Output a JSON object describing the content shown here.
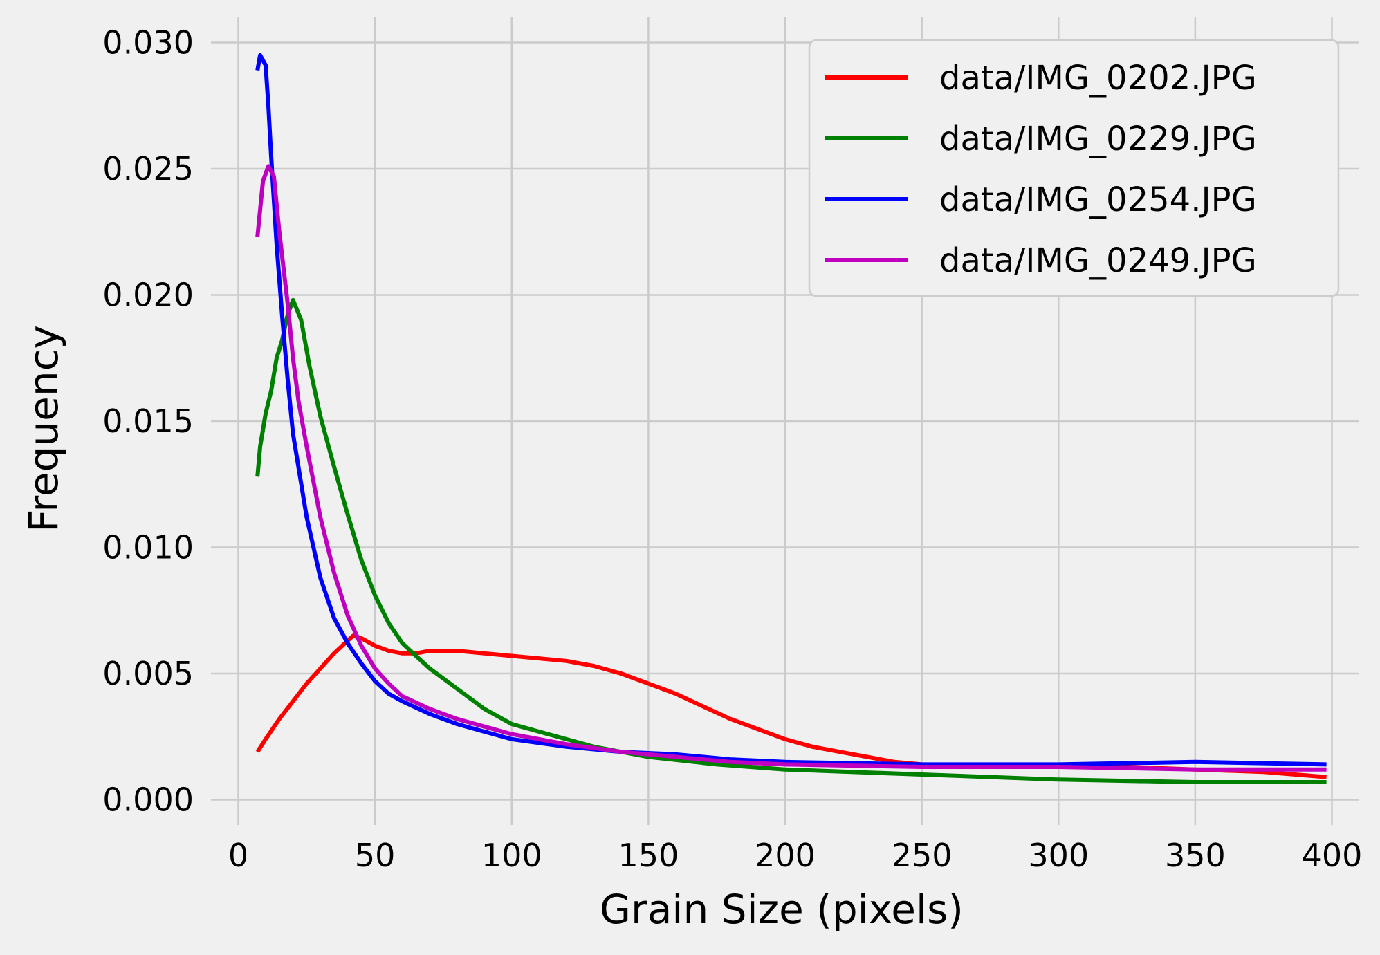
{
  "chart_data": {
    "type": "line",
    "title": "",
    "xlabel": "Grain Size (pixels)",
    "ylabel": "Frequency",
    "xlim": [
      -10,
      410
    ],
    "ylim": [
      -0.001,
      0.031
    ],
    "xticks": [
      0,
      50,
      100,
      150,
      200,
      250,
      300,
      350,
      400
    ],
    "xtick_labels": [
      "0",
      "50",
      "100",
      "150",
      "200",
      "250",
      "300",
      "350",
      "400"
    ],
    "yticks": [
      0.0,
      0.005,
      0.01,
      0.015,
      0.02,
      0.025,
      0.03
    ],
    "ytick_labels": [
      "0.000",
      "0.005",
      "0.010",
      "0.015",
      "0.020",
      "0.025",
      "0.030"
    ],
    "grid": true,
    "legend_position": "top-right",
    "background": "#f0f0f0",
    "series": [
      {
        "name": "data/IMG_0202.JPG",
        "color": "#ff0000",
        "points": [
          [
            7,
            0.0019
          ],
          [
            10,
            0.0024
          ],
          [
            15,
            0.0032
          ],
          [
            20,
            0.0039
          ],
          [
            25,
            0.0046
          ],
          [
            30,
            0.0052
          ],
          [
            35,
            0.0058
          ],
          [
            40,
            0.0063
          ],
          [
            42,
            0.0065
          ],
          [
            45,
            0.0064
          ],
          [
            50,
            0.0061
          ],
          [
            55,
            0.0059
          ],
          [
            60,
            0.0058
          ],
          [
            65,
            0.0058
          ],
          [
            70,
            0.0059
          ],
          [
            80,
            0.0059
          ],
          [
            90,
            0.0058
          ],
          [
            100,
            0.0057
          ],
          [
            110,
            0.0056
          ],
          [
            120,
            0.0055
          ],
          [
            130,
            0.0053
          ],
          [
            140,
            0.005
          ],
          [
            150,
            0.0046
          ],
          [
            160,
            0.0042
          ],
          [
            170,
            0.0037
          ],
          [
            180,
            0.0032
          ],
          [
            190,
            0.0028
          ],
          [
            200,
            0.0024
          ],
          [
            210,
            0.0021
          ],
          [
            220,
            0.0019
          ],
          [
            230,
            0.0017
          ],
          [
            240,
            0.0015
          ],
          [
            250,
            0.0014
          ],
          [
            275,
            0.0013
          ],
          [
            300,
            0.0013
          ],
          [
            325,
            0.0013
          ],
          [
            350,
            0.0012
          ],
          [
            375,
            0.0011
          ],
          [
            398,
            0.0009
          ]
        ]
      },
      {
        "name": "data/IMG_0229.JPG",
        "color": "#008000",
        "points": [
          [
            7,
            0.0128
          ],
          [
            8,
            0.014
          ],
          [
            10,
            0.0153
          ],
          [
            12,
            0.0162
          ],
          [
            14,
            0.0175
          ],
          [
            16,
            0.0182
          ],
          [
            18,
            0.0192
          ],
          [
            20,
            0.0198
          ],
          [
            23,
            0.019
          ],
          [
            26,
            0.0172
          ],
          [
            30,
            0.0152
          ],
          [
            35,
            0.0132
          ],
          [
            40,
            0.0113
          ],
          [
            45,
            0.0095
          ],
          [
            50,
            0.0081
          ],
          [
            55,
            0.007
          ],
          [
            60,
            0.0062
          ],
          [
            65,
            0.0057
          ],
          [
            70,
            0.0052
          ],
          [
            80,
            0.0044
          ],
          [
            90,
            0.0036
          ],
          [
            100,
            0.003
          ],
          [
            110,
            0.0027
          ],
          [
            120,
            0.0024
          ],
          [
            130,
            0.0021
          ],
          [
            140,
            0.0019
          ],
          [
            150,
            0.0017
          ],
          [
            175,
            0.0014
          ],
          [
            200,
            0.0012
          ],
          [
            250,
            0.001
          ],
          [
            300,
            0.0008
          ],
          [
            350,
            0.0007
          ],
          [
            398,
            0.0007
          ]
        ]
      },
      {
        "name": "data/IMG_0254.JPG",
        "color": "#0000ff",
        "points": [
          [
            7,
            0.0289
          ],
          [
            8,
            0.0295
          ],
          [
            10,
            0.0291
          ],
          [
            11,
            0.0275
          ],
          [
            12,
            0.0255
          ],
          [
            14,
            0.022
          ],
          [
            16,
            0.0192
          ],
          [
            18,
            0.0167
          ],
          [
            20,
            0.0145
          ],
          [
            25,
            0.0112
          ],
          [
            30,
            0.0088
          ],
          [
            35,
            0.0072
          ],
          [
            40,
            0.0062
          ],
          [
            45,
            0.0054
          ],
          [
            50,
            0.0047
          ],
          [
            55,
            0.0042
          ],
          [
            60,
            0.0039
          ],
          [
            70,
            0.0034
          ],
          [
            80,
            0.003
          ],
          [
            90,
            0.0027
          ],
          [
            100,
            0.0024
          ],
          [
            120,
            0.0021
          ],
          [
            140,
            0.0019
          ],
          [
            160,
            0.0018
          ],
          [
            180,
            0.0016
          ],
          [
            200,
            0.0015
          ],
          [
            250,
            0.0014
          ],
          [
            300,
            0.0014
          ],
          [
            350,
            0.0015
          ],
          [
            398,
            0.0014
          ]
        ]
      },
      {
        "name": "data/IMG_0249.JPG",
        "color": "#bf00bf",
        "points": [
          [
            7,
            0.0223
          ],
          [
            9,
            0.0245
          ],
          [
            11,
            0.0251
          ],
          [
            13,
            0.0247
          ],
          [
            15,
            0.0225
          ],
          [
            18,
            0.0197
          ],
          [
            20,
            0.0175
          ],
          [
            22,
            0.0158
          ],
          [
            25,
            0.014
          ],
          [
            30,
            0.0112
          ],
          [
            35,
            0.009
          ],
          [
            40,
            0.0073
          ],
          [
            45,
            0.0061
          ],
          [
            50,
            0.0052
          ],
          [
            55,
            0.0046
          ],
          [
            60,
            0.0041
          ],
          [
            70,
            0.0036
          ],
          [
            80,
            0.0032
          ],
          [
            90,
            0.0029
          ],
          [
            100,
            0.0026
          ],
          [
            120,
            0.0022
          ],
          [
            140,
            0.0019
          ],
          [
            160,
            0.0017
          ],
          [
            180,
            0.0015
          ],
          [
            200,
            0.0014
          ],
          [
            250,
            0.0013
          ],
          [
            300,
            0.0013
          ],
          [
            350,
            0.0012
          ],
          [
            398,
            0.0012
          ]
        ]
      }
    ]
  }
}
